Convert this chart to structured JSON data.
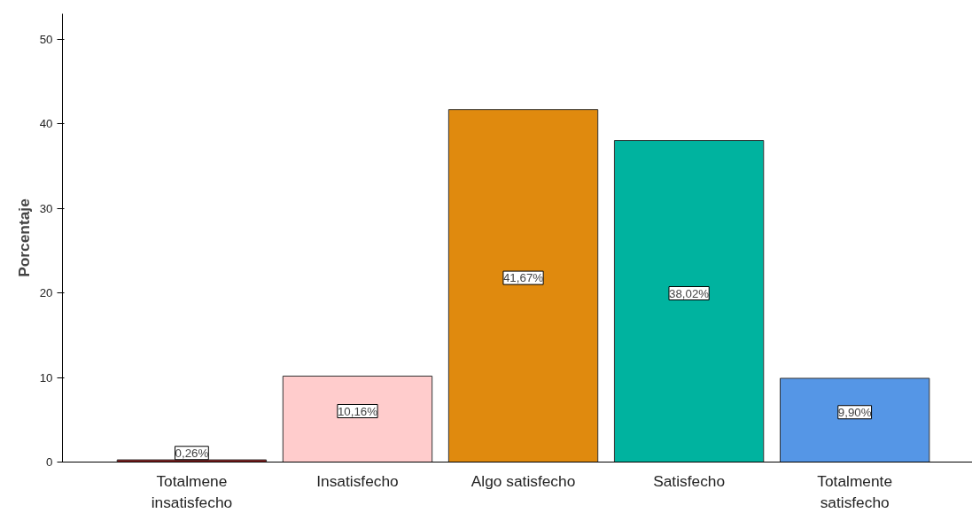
{
  "chart_data": {
    "type": "bar",
    "ylabel": "Porcentaje",
    "categories": [
      "Totalmene\ninsatisfecho",
      "Insatisfecho",
      "Algo satisfecho",
      "Satisfecho",
      "Totalmente\nsatisfecho"
    ],
    "values": [
      0.26,
      10.16,
      41.67,
      38.02,
      9.9
    ],
    "colors": [
      "#8b1a1a",
      "#ffcccc",
      "#e08a0e",
      "#00b39f",
      "#5596e6"
    ],
    "value_labels": [
      "0,26%",
      "10,16%",
      "41,67%",
      "38,02%",
      "9,90%"
    ],
    "ylim": [
      0,
      53
    ],
    "yticks": [
      0,
      10,
      20,
      30,
      40,
      50
    ],
    "grid": false
  }
}
